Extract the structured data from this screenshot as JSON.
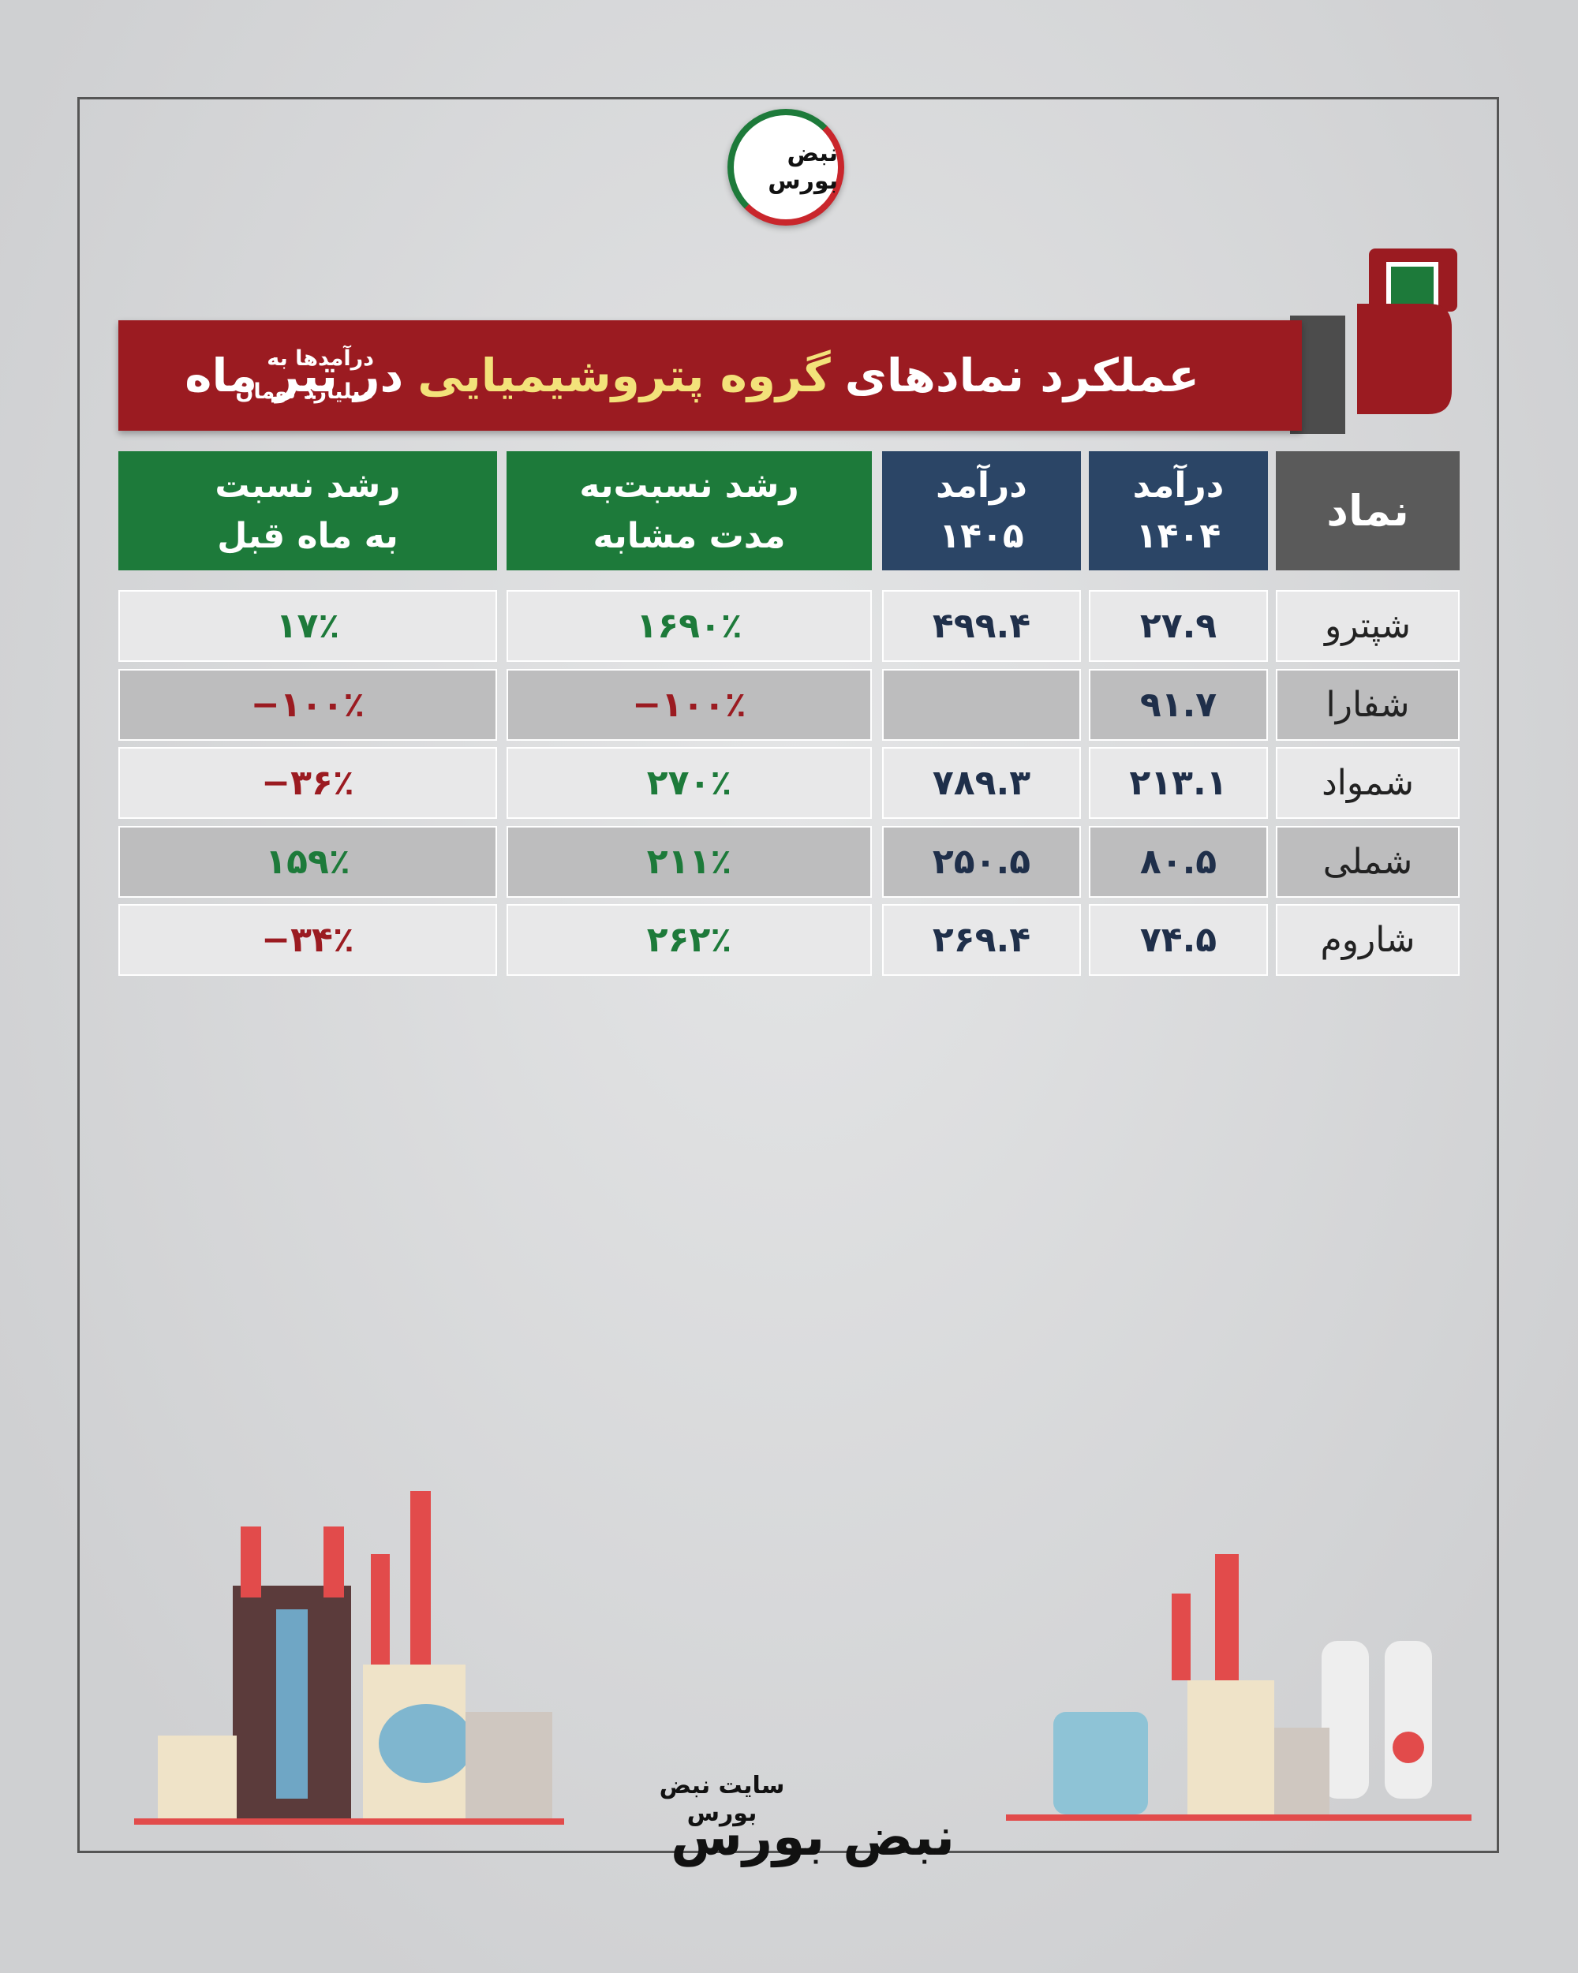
{
  "logo": {
    "text": "نبض بورس"
  },
  "header": {
    "title": [
      "عملکرد نمادهای",
      "گروه پتروشیمیایی",
      "در تیر ماه"
    ],
    "note": [
      "درآمدها به",
      "میلیارد تومان"
    ]
  },
  "table": {
    "headers": [
      [
        "نماد"
      ],
      [
        "درآمد",
        "۱۴۰۴"
      ],
      [
        "درآمد",
        "۱۴۰۵"
      ],
      [
        "رشد نسبت‌به",
        "مدت مشابه"
      ],
      [
        "رشد نسبت",
        "به ماه قبل"
      ]
    ],
    "rows": [
      [
        "شپترو",
        "۲۷.۹",
        "۴۹۹.۴",
        "۱۶۹۰٪",
        "۱۷٪"
      ],
      [
        "شفارا",
        "۹۱.۷",
        null,
        "−۱۰۰٪",
        "−۱۰۰٪"
      ],
      [
        "شمواد",
        "۲۱۳.۱",
        "۷۸۹.۳",
        "۲۷۰٪",
        "−۳۶٪"
      ],
      [
        "شملی",
        "۸۰.۵",
        "۲۵۰.۵",
        "۲۱۱٪",
        "۱۵۹٪"
      ],
      [
        "شاروم",
        "۷۴.۵",
        "۲۶۹.۴",
        "۲۶۲٪",
        "−۳۴٪"
      ]
    ]
  },
  "footer": {
    "site": "سایت نبض بورس",
    "logo": "نبض بورس"
  }
}
